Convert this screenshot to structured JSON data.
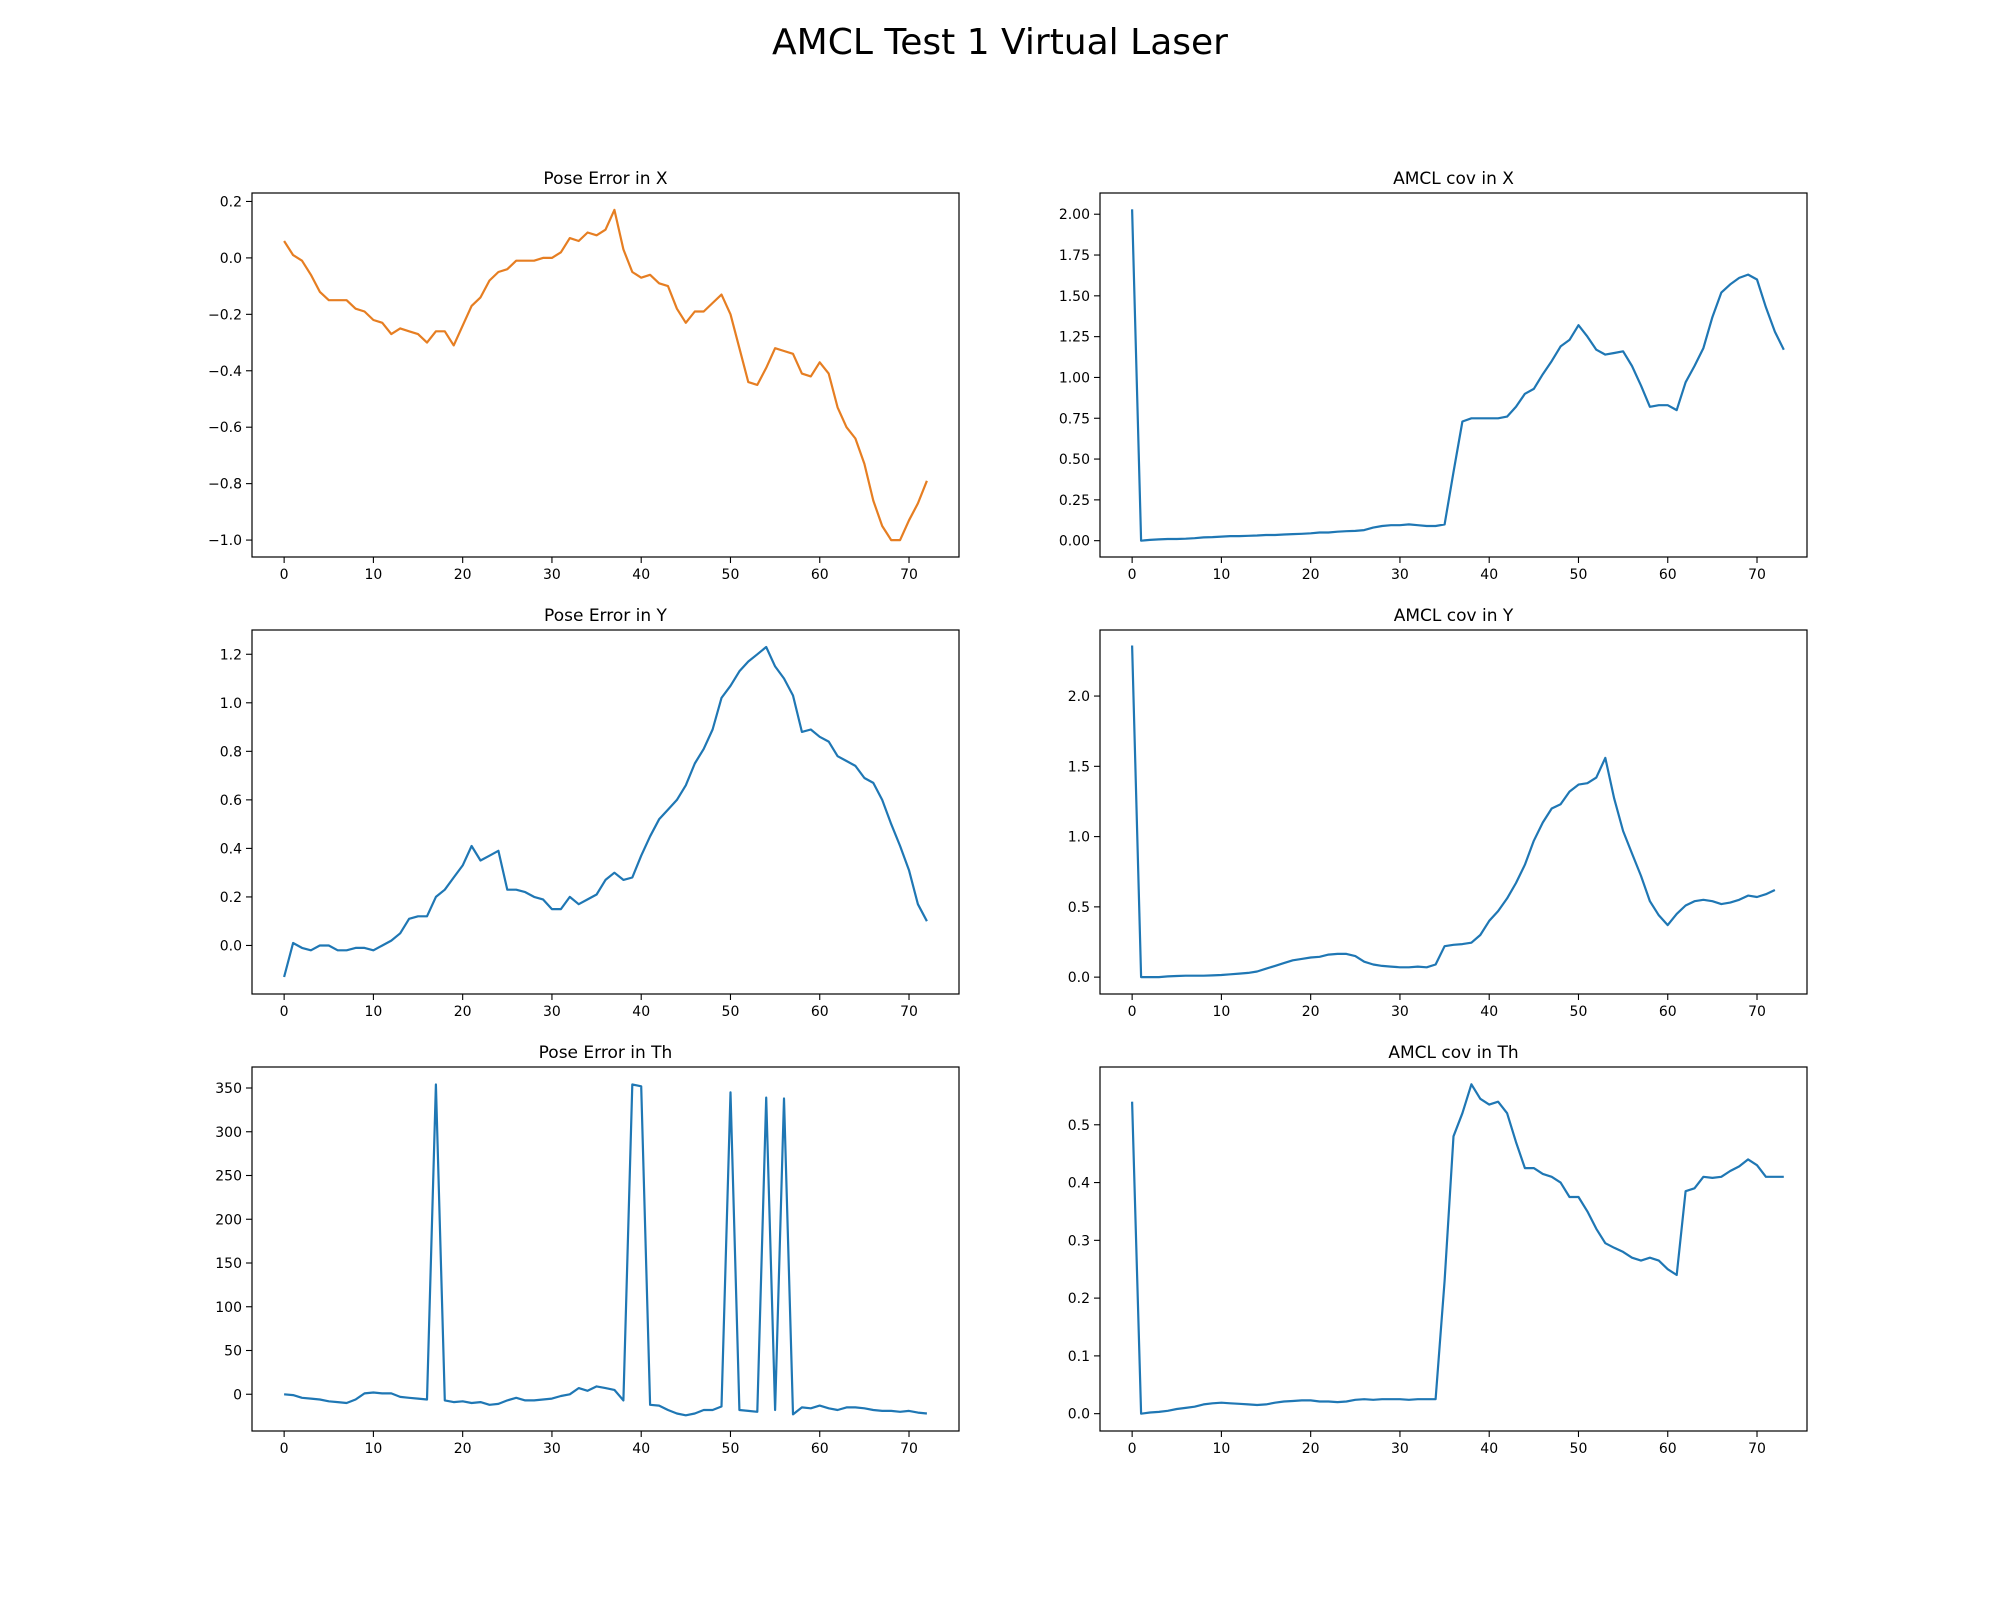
{
  "figure": {
    "title": "AMCL Test 1 Virtual Laser"
  },
  "chart_data": [
    {
      "type": "line",
      "title": "Pose Error in X",
      "xlabel": "",
      "ylabel": "",
      "xlim": [
        -3.6,
        75.6
      ],
      "ylim": [
        -1.06,
        0.23
      ],
      "xticks": [
        0,
        10,
        20,
        30,
        40,
        50,
        60,
        70
      ],
      "yticks": [
        -1.0,
        -0.8,
        -0.6,
        -0.4,
        -0.2,
        0.0,
        0.2
      ],
      "ytick_decimals": 1,
      "color": "#ff7f0e",
      "series": [
        {
          "color": "#e67e22",
          "values": [
            0.06,
            0.01,
            -0.01,
            -0.06,
            -0.12,
            -0.15,
            -0.15,
            -0.15,
            -0.18,
            -0.19,
            -0.22,
            -0.23,
            -0.27,
            -0.25,
            -0.26,
            -0.27,
            -0.3,
            -0.26,
            -0.26,
            -0.31,
            -0.24,
            -0.17,
            -0.14,
            -0.08,
            -0.05,
            -0.04,
            -0.01,
            -0.01,
            -0.01,
            0.0,
            0.0,
            0.02,
            0.07,
            0.06,
            0.09,
            0.08,
            0.1,
            0.17,
            0.03,
            -0.05,
            -0.07,
            -0.06,
            -0.09,
            -0.1,
            -0.18,
            -0.23,
            -0.19,
            -0.19,
            -0.16,
            -0.13,
            -0.2,
            -0.32,
            -0.44,
            -0.45,
            -0.39,
            -0.32,
            -0.33,
            -0.34,
            -0.41,
            -0.42,
            -0.37,
            -0.41,
            -0.53,
            -0.6,
            -0.64,
            -0.73,
            -0.86,
            -0.95,
            -1.0,
            -1.0,
            -0.93,
            -0.87,
            -0.79
          ]
        }
      ]
    },
    {
      "type": "line",
      "title": "AMCL cov in X",
      "xlabel": "",
      "ylabel": "",
      "xlim": [
        -3.6,
        75.6
      ],
      "ylim": [
        -0.1,
        2.13
      ],
      "xticks": [
        0,
        10,
        20,
        30,
        40,
        50,
        60,
        70
      ],
      "yticks": [
        0.0,
        0.25,
        0.5,
        0.75,
        1.0,
        1.25,
        1.5,
        1.75,
        2.0
      ],
      "ytick_decimals": 2,
      "series": [
        {
          "color": "#1f77b4",
          "values": [
            2.03,
            0.0,
            0.005,
            0.008,
            0.01,
            0.01,
            0.012,
            0.015,
            0.02,
            0.022,
            0.025,
            0.028,
            0.028,
            0.03,
            0.032,
            0.035,
            0.035,
            0.038,
            0.04,
            0.042,
            0.045,
            0.05,
            0.05,
            0.055,
            0.058,
            0.06,
            0.065,
            0.08,
            0.09,
            0.095,
            0.095,
            0.1,
            0.095,
            0.09,
            0.09,
            0.1,
            0.42,
            0.73,
            0.75,
            0.75,
            0.75,
            0.75,
            0.76,
            0.82,
            0.9,
            0.93,
            1.02,
            1.1,
            1.19,
            1.23,
            1.32,
            1.25,
            1.17,
            1.14,
            1.15,
            1.16,
            1.07,
            0.95,
            0.82,
            0.83,
            0.83,
            0.8,
            0.97,
            1.07,
            1.18,
            1.37,
            1.52,
            1.57,
            1.61,
            1.63,
            1.6,
            1.43,
            1.28,
            1.17
          ]
        }
      ]
    },
    {
      "type": "line",
      "title": "Pose Error in Y",
      "xlabel": "",
      "ylabel": "",
      "xlim": [
        -3.6,
        75.6
      ],
      "ylim": [
        -0.2,
        1.3
      ],
      "xticks": [
        0,
        10,
        20,
        30,
        40,
        50,
        60,
        70
      ],
      "yticks": [
        0.0,
        0.2,
        0.4,
        0.6,
        0.8,
        1.0,
        1.2
      ],
      "ytick_decimals": 1,
      "series": [
        {
          "color": "#1f77b4",
          "values": [
            -0.13,
            0.01,
            -0.01,
            -0.02,
            0.0,
            0.0,
            -0.02,
            -0.02,
            -0.01,
            -0.01,
            -0.02,
            0.0,
            0.02,
            0.05,
            0.11,
            0.12,
            0.12,
            0.2,
            0.23,
            0.28,
            0.33,
            0.41,
            0.35,
            0.37,
            0.39,
            0.23,
            0.23,
            0.22,
            0.2,
            0.19,
            0.15,
            0.15,
            0.2,
            0.17,
            0.19,
            0.21,
            0.27,
            0.3,
            0.27,
            0.28,
            0.37,
            0.45,
            0.52,
            0.56,
            0.6,
            0.66,
            0.75,
            0.81,
            0.89,
            1.02,
            1.07,
            1.13,
            1.17,
            1.2,
            1.23,
            1.15,
            1.1,
            1.03,
            0.88,
            0.89,
            0.86,
            0.84,
            0.78,
            0.76,
            0.74,
            0.69,
            0.67,
            0.6,
            0.5,
            0.41,
            0.31,
            0.17,
            0.1
          ]
        }
      ]
    },
    {
      "type": "line",
      "title": "AMCL cov in Y",
      "xlabel": "",
      "ylabel": "",
      "xlim": [
        -3.6,
        75.6
      ],
      "ylim": [
        -0.12,
        2.47
      ],
      "xticks": [
        0,
        10,
        20,
        30,
        40,
        50,
        60,
        70
      ],
      "yticks": [
        0.0,
        0.5,
        1.0,
        1.5,
        2.0
      ],
      "ytick_decimals": 1,
      "series": [
        {
          "color": "#1f77b4",
          "values": [
            2.36,
            0.0,
            0.0,
            0.0,
            0.005,
            0.008,
            0.01,
            0.01,
            0.01,
            0.012,
            0.015,
            0.02,
            0.025,
            0.03,
            0.04,
            0.06,
            0.08,
            0.1,
            0.12,
            0.13,
            0.14,
            0.145,
            0.16,
            0.165,
            0.165,
            0.15,
            0.11,
            0.09,
            0.08,
            0.075,
            0.07,
            0.07,
            0.075,
            0.07,
            0.09,
            0.22,
            0.23,
            0.235,
            0.245,
            0.3,
            0.4,
            0.47,
            0.56,
            0.67,
            0.8,
            0.97,
            1.1,
            1.2,
            1.23,
            1.32,
            1.37,
            1.38,
            1.42,
            1.56,
            1.27,
            1.04,
            0.88,
            0.72,
            0.54,
            0.44,
            0.37,
            0.45,
            0.51,
            0.54,
            0.55,
            0.54,
            0.52,
            0.53,
            0.55,
            0.58,
            0.57,
            0.59,
            0.62
          ]
        }
      ]
    },
    {
      "type": "line",
      "title": "Pose Error in Th",
      "xlabel": "",
      "ylabel": "",
      "xlim": [
        -3.6,
        75.6
      ],
      "ylim": [
        -42,
        374
      ],
      "xticks": [
        0,
        10,
        20,
        30,
        40,
        50,
        60,
        70
      ],
      "yticks": [
        0,
        50,
        100,
        150,
        200,
        250,
        300,
        350
      ],
      "ytick_decimals": 0,
      "series": [
        {
          "color": "#1f77b4",
          "values": [
            0,
            -1,
            -4,
            -5,
            -6,
            -8,
            -9,
            -10,
            -6,
            1,
            2,
            1,
            1,
            -3,
            -4,
            -5,
            -6,
            354,
            -7,
            -9,
            -8,
            -10,
            -9,
            -12,
            -11,
            -7,
            -4,
            -7,
            -7,
            -6,
            -5,
            -2,
            0,
            7,
            4,
            9,
            7,
            5,
            -7,
            354,
            352,
            -12,
            -13,
            -18,
            -22,
            -24,
            -22,
            -18,
            -18,
            -14,
            345,
            -18,
            -19,
            -20,
            339,
            -18,
            338,
            -23,
            -15,
            -16,
            -13,
            -16,
            -18,
            -15,
            -15,
            -16,
            -18,
            -19,
            -19,
            -20,
            -19,
            -21,
            -22
          ]
        }
      ]
    },
    {
      "type": "line",
      "title": "AMCL cov in Th",
      "xlabel": "",
      "ylabel": "",
      "xlim": [
        -3.6,
        75.6
      ],
      "ylim": [
        -0.03,
        0.6
      ],
      "xticks": [
        0,
        10,
        20,
        30,
        40,
        50,
        60,
        70
      ],
      "yticks": [
        0.0,
        0.1,
        0.2,
        0.3,
        0.4,
        0.5
      ],
      "ytick_decimals": 1,
      "series": [
        {
          "color": "#1f77b4",
          "values": [
            0.54,
            0.0,
            0.002,
            0.003,
            0.005,
            0.008,
            0.01,
            0.012,
            0.016,
            0.018,
            0.019,
            0.018,
            0.017,
            0.016,
            0.015,
            0.016,
            0.019,
            0.021,
            0.022,
            0.023,
            0.023,
            0.021,
            0.021,
            0.02,
            0.021,
            0.024,
            0.025,
            0.024,
            0.025,
            0.025,
            0.025,
            0.024,
            0.025,
            0.025,
            0.025,
            0.23,
            0.48,
            0.52,
            0.57,
            0.545,
            0.535,
            0.54,
            0.52,
            0.47,
            0.425,
            0.425,
            0.415,
            0.41,
            0.4,
            0.375,
            0.375,
            0.35,
            0.32,
            0.295,
            0.287,
            0.28,
            0.27,
            0.265,
            0.27,
            0.265,
            0.25,
            0.24,
            0.385,
            0.39,
            0.41,
            0.408,
            0.41,
            0.42,
            0.428,
            0.44,
            0.43,
            0.41,
            0.41,
            0.41
          ]
        }
      ]
    }
  ]
}
